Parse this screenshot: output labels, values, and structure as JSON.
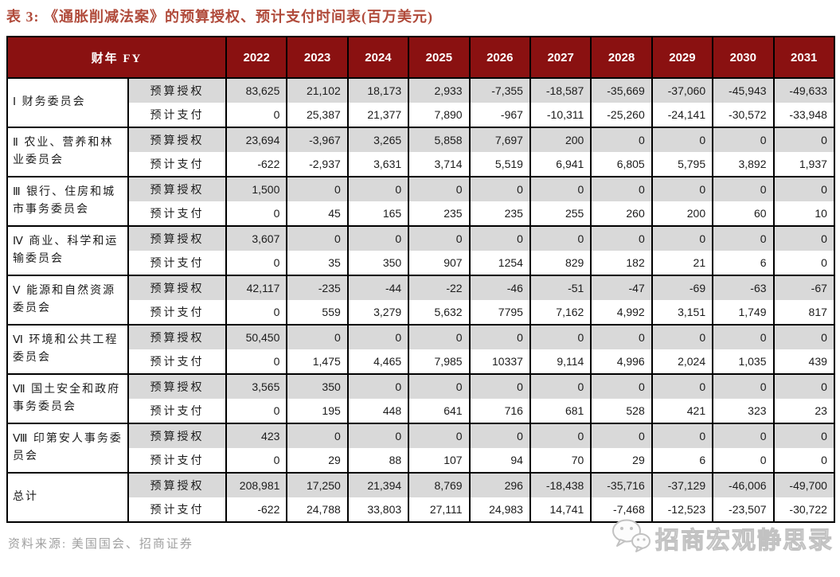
{
  "title": "表 3: 《通胀削减法案》的预算授权、预计支付时间表(百万美元)",
  "source": "资料来源: 美国国会、招商证券",
  "watermark": "招商宏观静思录",
  "colors": {
    "header_bg": "#8A1111",
    "title_color": "#B04A3A",
    "alt_row_bg": "#D9D9D9",
    "source_color": "#A0A0A0",
    "wm_stroke": "#C2C2C2"
  },
  "table": {
    "header_label": "财年 FY",
    "years": [
      "2022",
      "2023",
      "2024",
      "2025",
      "2026",
      "2027",
      "2028",
      "2029",
      "2030",
      "2031"
    ],
    "row_labels": {
      "auth": "预算授权",
      "outlay": "预计支付"
    },
    "rows": [
      {
        "committee": "Ⅰ 财务委员会",
        "auth": [
          "83,625",
          "21,102",
          "18,173",
          "2,933",
          "-7,355",
          "-18,587",
          "-35,669",
          "-37,060",
          "-45,943",
          "-49,633"
        ],
        "outlay": [
          "0",
          "25,387",
          "21,377",
          "7,890",
          "-967",
          "-10,311",
          "-25,260",
          "-24,141",
          "-30,572",
          "-33,948"
        ]
      },
      {
        "committee": "Ⅱ 农业、营养和林业委员会",
        "auth": [
          "23,694",
          "-3,967",
          "3,265",
          "5,858",
          "7,697",
          "200",
          "0",
          "0",
          "0",
          "0"
        ],
        "outlay": [
          "-622",
          "-2,937",
          "3,631",
          "3,714",
          "5,519",
          "6,941",
          "6,805",
          "5,795",
          "3,892",
          "1,937"
        ]
      },
      {
        "committee": "Ⅲ 银行、住房和城市事务委员会",
        "auth": [
          "1,500",
          "0",
          "0",
          "0",
          "0",
          "0",
          "0",
          "0",
          "0",
          "0"
        ],
        "outlay": [
          "0",
          "45",
          "165",
          "235",
          "235",
          "255",
          "260",
          "200",
          "60",
          "10"
        ]
      },
      {
        "committee": "Ⅳ 商业、科学和运输委员会",
        "auth": [
          "3,607",
          "0",
          "0",
          "0",
          "0",
          "0",
          "0",
          "0",
          "0",
          "0"
        ],
        "outlay": [
          "0",
          "35",
          "350",
          "907",
          "1254",
          "829",
          "182",
          "21",
          "6",
          "0"
        ]
      },
      {
        "committee": "Ⅴ 能源和自然资源委员会",
        "auth": [
          "42,117",
          "-235",
          "-44",
          "-22",
          "-46",
          "-51",
          "-47",
          "-69",
          "-63",
          "-67"
        ],
        "outlay": [
          "0",
          "559",
          "3,279",
          "5,632",
          "7795",
          "7,162",
          "4,992",
          "3,151",
          "1,749",
          "817"
        ]
      },
      {
        "committee": "Ⅵ 环境和公共工程委员会",
        "auth": [
          "50,450",
          "0",
          "0",
          "0",
          "0",
          "0",
          "0",
          "0",
          "0",
          "0"
        ],
        "outlay": [
          "0",
          "1,475",
          "4,465",
          "7,985",
          "10337",
          "9,114",
          "4,996",
          "2,024",
          "1,035",
          "439"
        ]
      },
      {
        "committee": "Ⅶ 国土安全和政府事务委员会",
        "auth": [
          "3,565",
          "350",
          "0",
          "0",
          "0",
          "0",
          "0",
          "0",
          "0",
          "0"
        ],
        "outlay": [
          "0",
          "195",
          "448",
          "641",
          "716",
          "681",
          "528",
          "421",
          "323",
          "23"
        ]
      },
      {
        "committee": "Ⅷ 印第安人事务委员会",
        "auth": [
          "423",
          "0",
          "0",
          "0",
          "0",
          "0",
          "0",
          "0",
          "0",
          "0"
        ],
        "outlay": [
          "0",
          "29",
          "88",
          "107",
          "94",
          "70",
          "29",
          "6",
          "0",
          "0"
        ]
      },
      {
        "committee": "总计",
        "auth": [
          "208,981",
          "17,250",
          "21,394",
          "8,769",
          "296",
          "-18,438",
          "-35,716",
          "-37,129",
          "-46,006",
          "-49,700"
        ],
        "outlay": [
          "-622",
          "24,788",
          "33,803",
          "27,111",
          "24,983",
          "14,741",
          "-7,468",
          "-12,523",
          "-23,507",
          "-30,722"
        ]
      }
    ]
  }
}
